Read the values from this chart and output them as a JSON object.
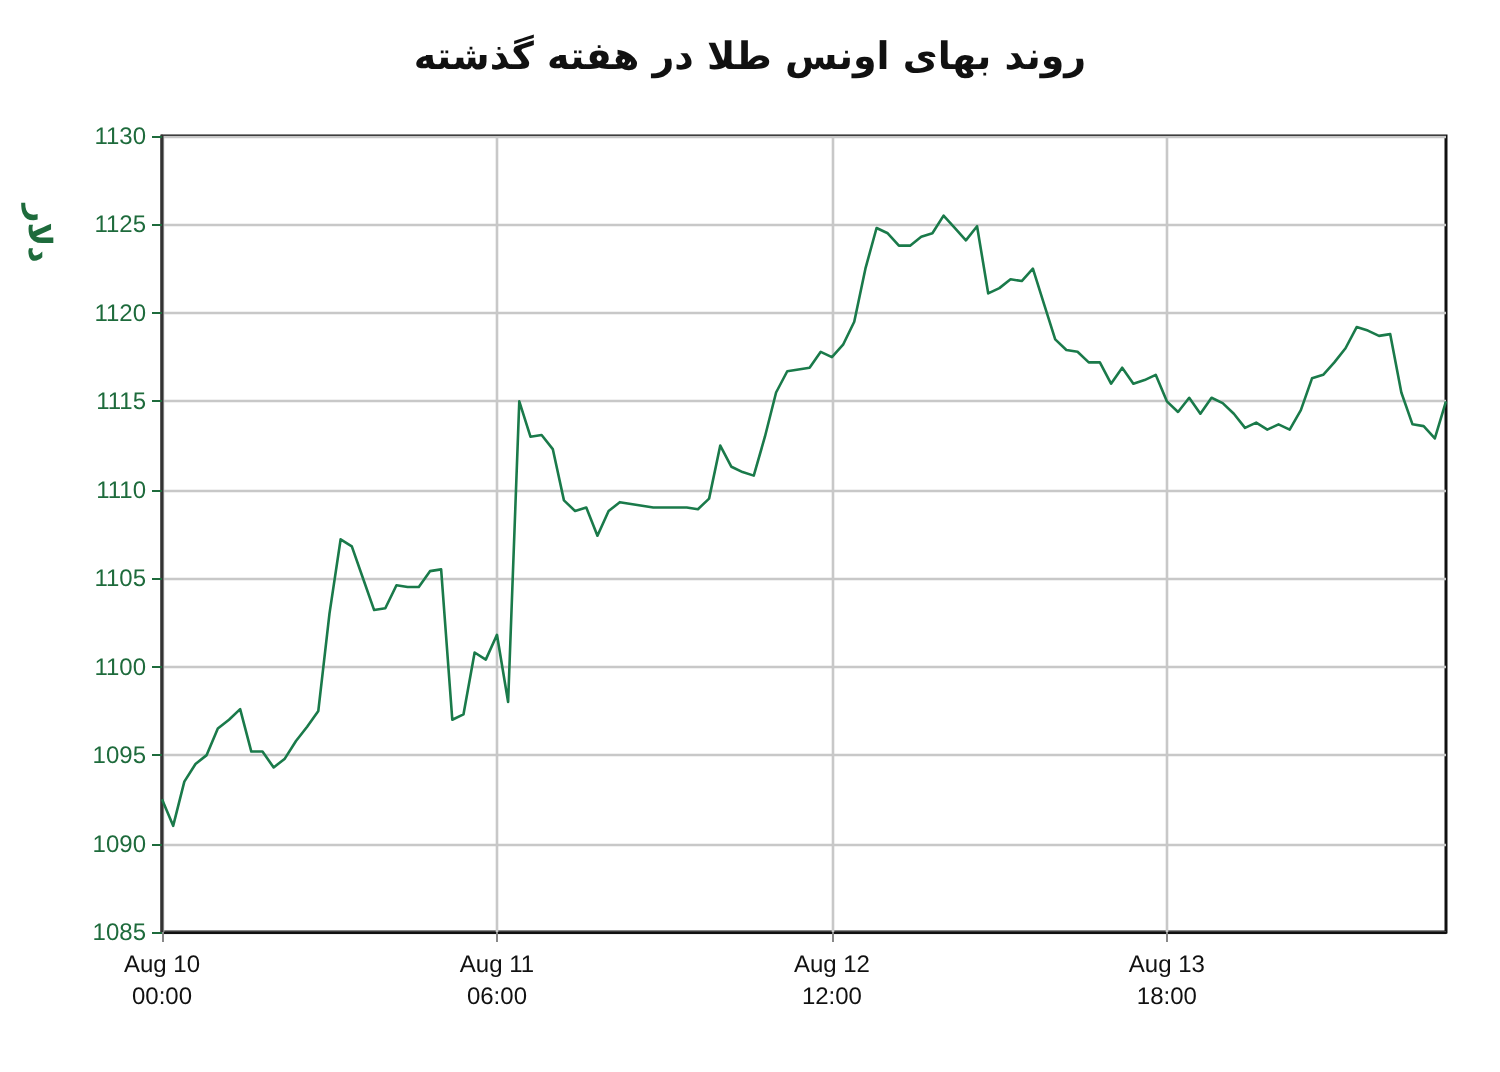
{
  "chart_data": {
    "type": "line",
    "title": "روند بهای اونس طلا در هفته گذشته",
    "ylabel": "دلار",
    "x": [
      "--08-10T00:00",
      "--08-10T01:00",
      "--08-10T02:00",
      "--08-10T03:00",
      "--08-10T04:00",
      "--08-10T05:00",
      "--08-10T06:00",
      "--08-10T07:00",
      "--08-10T08:00",
      "--08-10T09:00",
      "--08-10T10:00",
      "--08-10T11:00",
      "--08-10T12:00",
      "--08-10T13:00",
      "--08-10T14:00",
      "--08-10T15:00",
      "--08-10T16:00",
      "--08-10T17:00",
      "--08-10T18:00",
      "--08-10T19:00",
      "--08-10T20:00",
      "--08-10T21:00",
      "--08-10T22:00",
      "--08-10T23:00",
      "--08-11T00:00",
      "--08-11T01:00",
      "--08-11T02:00",
      "--08-11T03:00",
      "--08-11T04:00",
      "--08-11T05:00",
      "--08-11T06:00",
      "--08-11T07:00",
      "--08-11T08:00",
      "--08-11T09:00",
      "--08-11T10:00",
      "--08-11T11:00",
      "--08-11T12:00",
      "--08-11T13:00",
      "--08-11T14:00",
      "--08-11T15:00",
      "--08-11T16:00",
      "--08-11T17:00",
      "--08-11T18:00",
      "--08-11T19:00",
      "--08-11T20:00",
      "--08-11T21:00",
      "--08-11T22:00",
      "--08-11T23:00",
      "--08-12T00:00",
      "--08-12T01:00",
      "--08-12T02:00",
      "--08-12T03:00",
      "--08-12T04:00",
      "--08-12T05:00",
      "--08-12T06:00",
      "--08-12T07:00",
      "--08-12T08:00",
      "--08-12T09:00",
      "--08-12T10:00",
      "--08-12T11:00",
      "--08-12T12:00",
      "--08-12T13:00",
      "--08-12T14:00",
      "--08-12T15:00",
      "--08-12T16:00",
      "--08-12T17:00",
      "--08-12T18:00",
      "--08-12T19:00",
      "--08-12T20:00",
      "--08-12T21:00",
      "--08-12T22:00",
      "--08-12T23:00",
      "--08-13T00:00",
      "--08-13T01:00",
      "--08-13T02:00",
      "--08-13T03:00",
      "--08-13T04:00",
      "--08-13T05:00",
      "--08-13T06:00",
      "--08-13T07:00",
      "--08-13T08:00",
      "--08-13T09:00",
      "--08-13T10:00",
      "--08-13T11:00",
      "--08-13T12:00",
      "--08-13T13:00",
      "--08-13T14:00",
      "--08-13T15:00",
      "--08-13T16:00",
      "--08-13T17:00",
      "--08-13T18:00",
      "--08-13T19:00",
      "--08-13T20:00",
      "--08-13T21:00",
      "--08-13T22:00",
      "--08-13T23:00",
      "--08-14T00:00",
      "--08-14T01:00",
      "--08-14T02:00",
      "--08-14T03:00",
      "--08-14T04:00",
      "--08-14T05:00",
      "--08-14T06:00",
      "--08-14T07:00",
      "--08-14T08:00",
      "--08-14T09:00",
      "--08-14T10:00",
      "--08-14T11:00",
      "--08-14T12:00",
      "--08-14T13:00",
      "--08-14T14:00",
      "--08-14T15:00",
      "--08-14T16:00",
      "--08-14T17:00",
      "--08-14T18:00",
      "--08-14T19:00"
    ],
    "series": [
      {
        "color": "#1a7a4a",
        "values": [
          1092.5,
          1091,
          1093.5,
          1094.5,
          1095,
          1096.5,
          1097,
          1097.6,
          1095.2,
          1095.2,
          1094.3,
          1094.8,
          1095.8,
          1096.6,
          1097.5,
          1103,
          1107.2,
          1106.8,
          1105,
          1103.2,
          1103.3,
          1104.6,
          1104.5,
          1104.5,
          1105.4,
          1105.5,
          1097,
          1097.3,
          1100.8,
          1100.4,
          1101.8,
          1098,
          1115,
          1113,
          1113.1,
          1112.3,
          1109.4,
          1108.8,
          1109,
          1107.4,
          1108.8,
          1109.3,
          1109.2,
          1109.1,
          1109,
          1109,
          1109,
          1109,
          1108.9,
          1109.5,
          1112.5,
          1111.3,
          1111,
          1110.8,
          1113,
          1115.5,
          1116.7,
          1116.8,
          1116.9,
          1117.8,
          1117.5,
          1118.2,
          1119.5,
          1122.5,
          1124.8,
          1124.5,
          1123.8,
          1123.8,
          1124.3,
          1124.5,
          1125.5,
          1124.8,
          1124.1,
          1124.9,
          1121.1,
          1121.4,
          1121.9,
          1121.8,
          1122.5,
          1120.5,
          1118.5,
          1117.9,
          1117.8,
          1117.2,
          1117.2,
          1116,
          1116.9,
          1116,
          1116.2,
          1116.5,
          1115,
          1114.4,
          1115.2,
          1114.3,
          1115.2,
          1114.9,
          1114.3,
          1113.5,
          1113.8,
          1113.4,
          1113.7,
          1113.4,
          1114.5,
          1116.3,
          1116.5,
          1117.2,
          1118,
          1119.2,
          1119,
          1118.7,
          1118.8,
          1115.5,
          1113.7,
          1113.6,
          1112.9,
          1115
        ]
      }
    ],
    "xlim": [
      "--08-10T00:00",
      "--08-14T19:00"
    ],
    "xticks": [
      {
        "value": "--08-10T00:00",
        "label": "Aug 10\n00:00"
      },
      {
        "value": "--08-11T06:00",
        "label": "Aug 11\n06:00"
      },
      {
        "value": "--08-12T12:00",
        "label": "Aug 12\n12:00"
      },
      {
        "value": "--08-13T18:00",
        "label": "Aug 13\n18:00"
      }
    ],
    "ylim": [
      1085,
      1130
    ],
    "yticks": [
      1085,
      1090,
      1095,
      1100,
      1105,
      1110,
      1115,
      1120,
      1125,
      1130
    ],
    "grid": true,
    "marker": "none",
    "line_style": "solid"
  }
}
